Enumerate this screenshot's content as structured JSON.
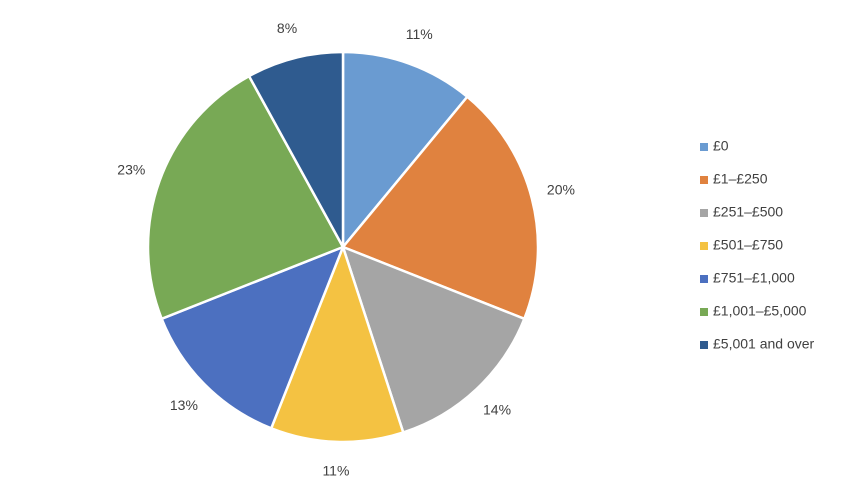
{
  "chart_data": {
    "type": "pie",
    "categories": [
      "£0",
      "£1–£250",
      "£251–£500",
      "£501–£750",
      "£751–£1,000",
      "£1,001–£5,000",
      "£5,001 and over"
    ],
    "values": [
      11,
      20,
      14,
      11,
      13,
      23,
      8
    ],
    "value_labels": [
      "11%",
      "20%",
      "14%",
      "11%",
      "13%",
      "23%",
      "8%"
    ],
    "colors": [
      "#6a9bd1",
      "#e0823f",
      "#a5a5a5",
      "#f4c242",
      "#4c70c0",
      "#78a955",
      "#2f5b8f"
    ],
    "legend": "right"
  }
}
